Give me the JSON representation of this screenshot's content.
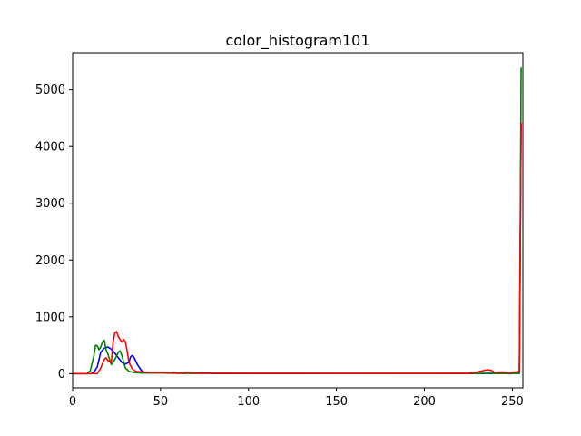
{
  "chart_data": {
    "type": "line",
    "title": "color_histogram101",
    "xlabel": "",
    "ylabel": "",
    "xlim": [
      0,
      256
    ],
    "ylim": [
      -250,
      5650
    ],
    "xticks": [
      0,
      50,
      100,
      150,
      200,
      250
    ],
    "yticks": [
      0,
      1000,
      2000,
      3000,
      4000,
      5000
    ],
    "grid": false,
    "legend": "none",
    "series": [
      {
        "color": "#0000ff",
        "points": [
          [
            0,
            0
          ],
          [
            10,
            0
          ],
          [
            12,
            20
          ],
          [
            14,
            120
          ],
          [
            16,
            380
          ],
          [
            18,
            450
          ],
          [
            20,
            470
          ],
          [
            22,
            430
          ],
          [
            24,
            360
          ],
          [
            26,
            280
          ],
          [
            28,
            200
          ],
          [
            30,
            170
          ],
          [
            32,
            200
          ],
          [
            33,
            300
          ],
          [
            34,
            320
          ],
          [
            35,
            280
          ],
          [
            37,
            150
          ],
          [
            39,
            60
          ],
          [
            41,
            20
          ],
          [
            45,
            15
          ],
          [
            55,
            10
          ],
          [
            57,
            20
          ],
          [
            60,
            10
          ],
          [
            80,
            5
          ],
          [
            150,
            3
          ],
          [
            200,
            3
          ],
          [
            230,
            2
          ],
          [
            235,
            5
          ],
          [
            250,
            5
          ],
          [
            254,
            5
          ],
          [
            255,
            4400
          ]
        ]
      },
      {
        "color": "#008000",
        "points": [
          [
            0,
            0
          ],
          [
            8,
            0
          ],
          [
            10,
            50
          ],
          [
            12,
            300
          ],
          [
            13,
            500
          ],
          [
            14,
            490
          ],
          [
            15,
            420
          ],
          [
            16,
            470
          ],
          [
            17,
            560
          ],
          [
            18,
            590
          ],
          [
            19,
            420
          ],
          [
            20,
            350
          ],
          [
            21,
            250
          ],
          [
            22,
            160
          ],
          [
            23,
            200
          ],
          [
            24,
            250
          ],
          [
            25,
            310
          ],
          [
            26,
            380
          ],
          [
            27,
            400
          ],
          [
            28,
            320
          ],
          [
            29,
            200
          ],
          [
            30,
            100
          ],
          [
            32,
            40
          ],
          [
            35,
            20
          ],
          [
            40,
            10
          ],
          [
            50,
            10
          ],
          [
            60,
            5
          ],
          [
            100,
            5
          ],
          [
            200,
            3
          ],
          [
            235,
            5
          ],
          [
            254,
            5
          ],
          [
            255,
            5390
          ]
        ]
      },
      {
        "color": "#ff0000",
        "points": [
          [
            0,
            0
          ],
          [
            14,
            0
          ],
          [
            16,
            100
          ],
          [
            18,
            250
          ],
          [
            19,
            280
          ],
          [
            20,
            230
          ],
          [
            22,
            200
          ],
          [
            23,
            550
          ],
          [
            24,
            720
          ],
          [
            25,
            740
          ],
          [
            26,
            650
          ],
          [
            27,
            600
          ],
          [
            28,
            560
          ],
          [
            29,
            600
          ],
          [
            30,
            560
          ],
          [
            31,
            400
          ],
          [
            32,
            200
          ],
          [
            34,
            80
          ],
          [
            36,
            40
          ],
          [
            40,
            30
          ],
          [
            45,
            20
          ],
          [
            50,
            20
          ],
          [
            55,
            15
          ],
          [
            60,
            10
          ],
          [
            65,
            20
          ],
          [
            70,
            10
          ],
          [
            100,
            5
          ],
          [
            150,
            5
          ],
          [
            200,
            5
          ],
          [
            225,
            5
          ],
          [
            230,
            30
          ],
          [
            233,
            50
          ],
          [
            236,
            70
          ],
          [
            238,
            60
          ],
          [
            240,
            20
          ],
          [
            244,
            30
          ],
          [
            248,
            20
          ],
          [
            252,
            30
          ],
          [
            254,
            40
          ],
          [
            255,
            4420
          ]
        ]
      }
    ]
  }
}
